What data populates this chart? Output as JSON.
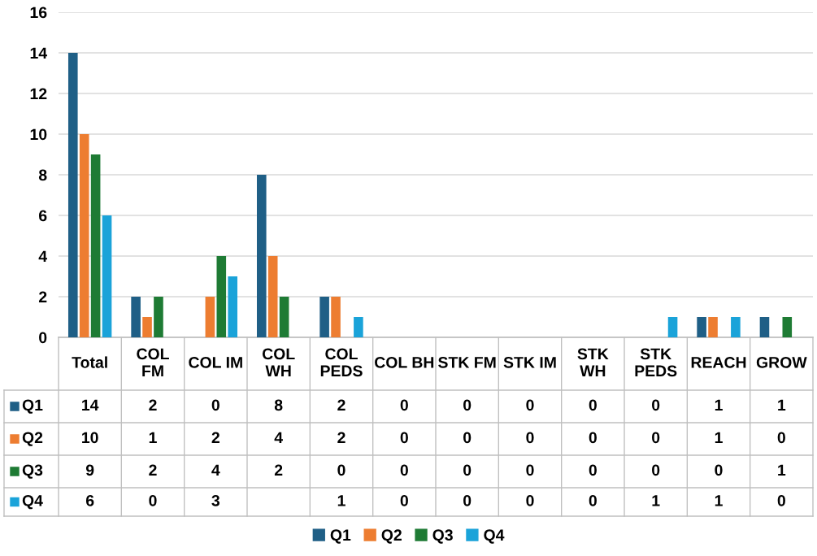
{
  "chart_data": {
    "type": "bar",
    "categories": [
      "Total",
      "COL\nFM",
      "COL IM",
      "COL\nWH",
      "COL\nPEDS",
      "COL BH",
      "STK FM",
      "STK IM",
      "STK\nWH",
      "STK\nPEDS",
      "REACH",
      "GROW"
    ],
    "series": [
      {
        "name": "Q1",
        "color": "#1f5f86",
        "values": [
          14,
          2,
          0,
          8,
          2,
          0,
          0,
          0,
          0,
          0,
          1,
          1
        ]
      },
      {
        "name": "Q2",
        "color": "#ed7d31",
        "values": [
          10,
          1,
          2,
          4,
          2,
          0,
          0,
          0,
          0,
          0,
          1,
          0
        ]
      },
      {
        "name": "Q3",
        "color": "#1e7b34",
        "values": [
          9,
          2,
          4,
          2,
          0,
          0,
          0,
          0,
          0,
          0,
          0,
          1
        ]
      },
      {
        "name": "Q4",
        "color": "#1aa3d9",
        "values": [
          6,
          0,
          3,
          null,
          1,
          0,
          0,
          0,
          0,
          1,
          1,
          0
        ]
      }
    ],
    "ylim": [
      0,
      16
    ],
    "yticks": [
      0,
      2,
      4,
      6,
      8,
      10,
      12,
      14,
      16
    ],
    "grid": "y",
    "legend": "bottom",
    "data_labels": true
  }
}
